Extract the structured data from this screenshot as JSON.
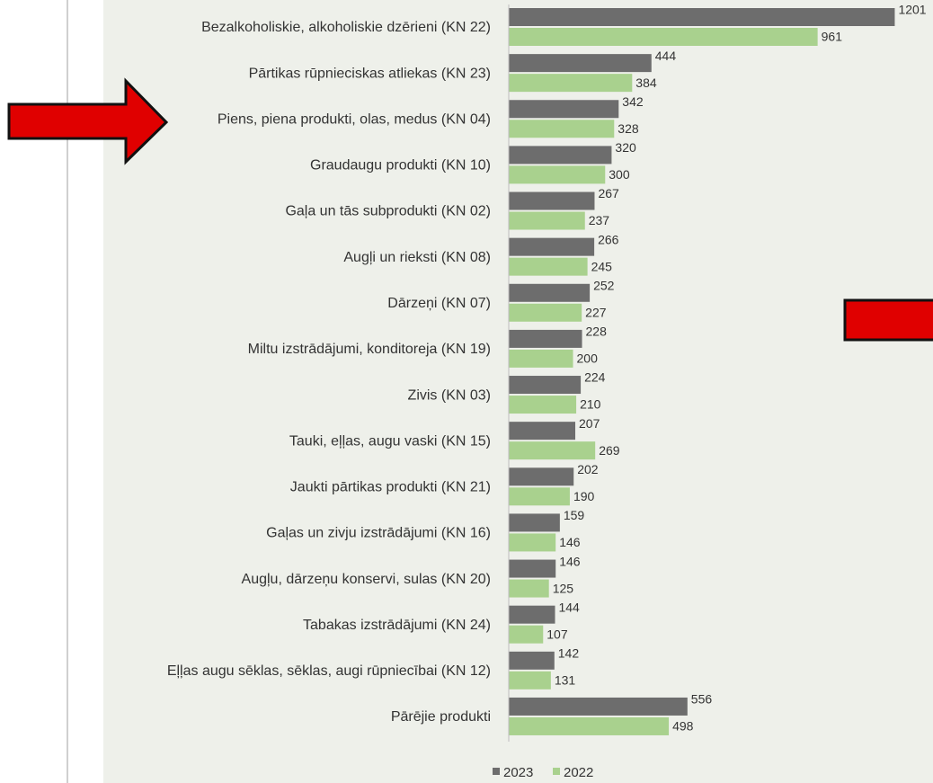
{
  "chart_data": {
    "type": "hbar",
    "categories": [
      "Bezalkoholiskie, alkoholiskie dzērieni (KN 22)",
      "Pārtikas rūpnieciskas atliekas (KN 23)",
      "Piens, piena produkti, olas, medus (KN 04)",
      "Graudaugu produkti (KN 10)",
      "Gaļa un tās subprodukti (KN 02)",
      "Augļi un rieksti (KN 08)",
      "Dārzeņi (KN 07)",
      "Miltu izstrādājumi, konditoreja (KN 19)",
      "Zivis (KN 03)",
      "Tauki, eļļas, augu vaski (KN 15)",
      "Jaukti pārtikas produkti (KN 21)",
      "Gaļas un zivju izstrādājumi (KN 16)",
      "Augļu, dārzeņu konservi, sulas (KN 20)",
      "Tabakas izstrādājumi (KN 24)",
      "Eļļas augu sēklas, sēklas, augi rūpniecībai (KN 12)",
      "Pārējie produkti"
    ],
    "series": [
      {
        "name": "2023",
        "color": "#6d6d6d",
        "values": [
          1201,
          444,
          342,
          320,
          267,
          266,
          252,
          228,
          224,
          207,
          202,
          159,
          146,
          144,
          142,
          556
        ]
      },
      {
        "name": "2022",
        "color": "#a9d18e",
        "values": [
          961,
          384,
          328,
          300,
          237,
          245,
          227,
          200,
          210,
          269,
          190,
          146,
          125,
          107,
          131,
          498
        ]
      }
    ],
    "xlim": [
      0,
      1320
    ],
    "legend": "bottom"
  }
}
